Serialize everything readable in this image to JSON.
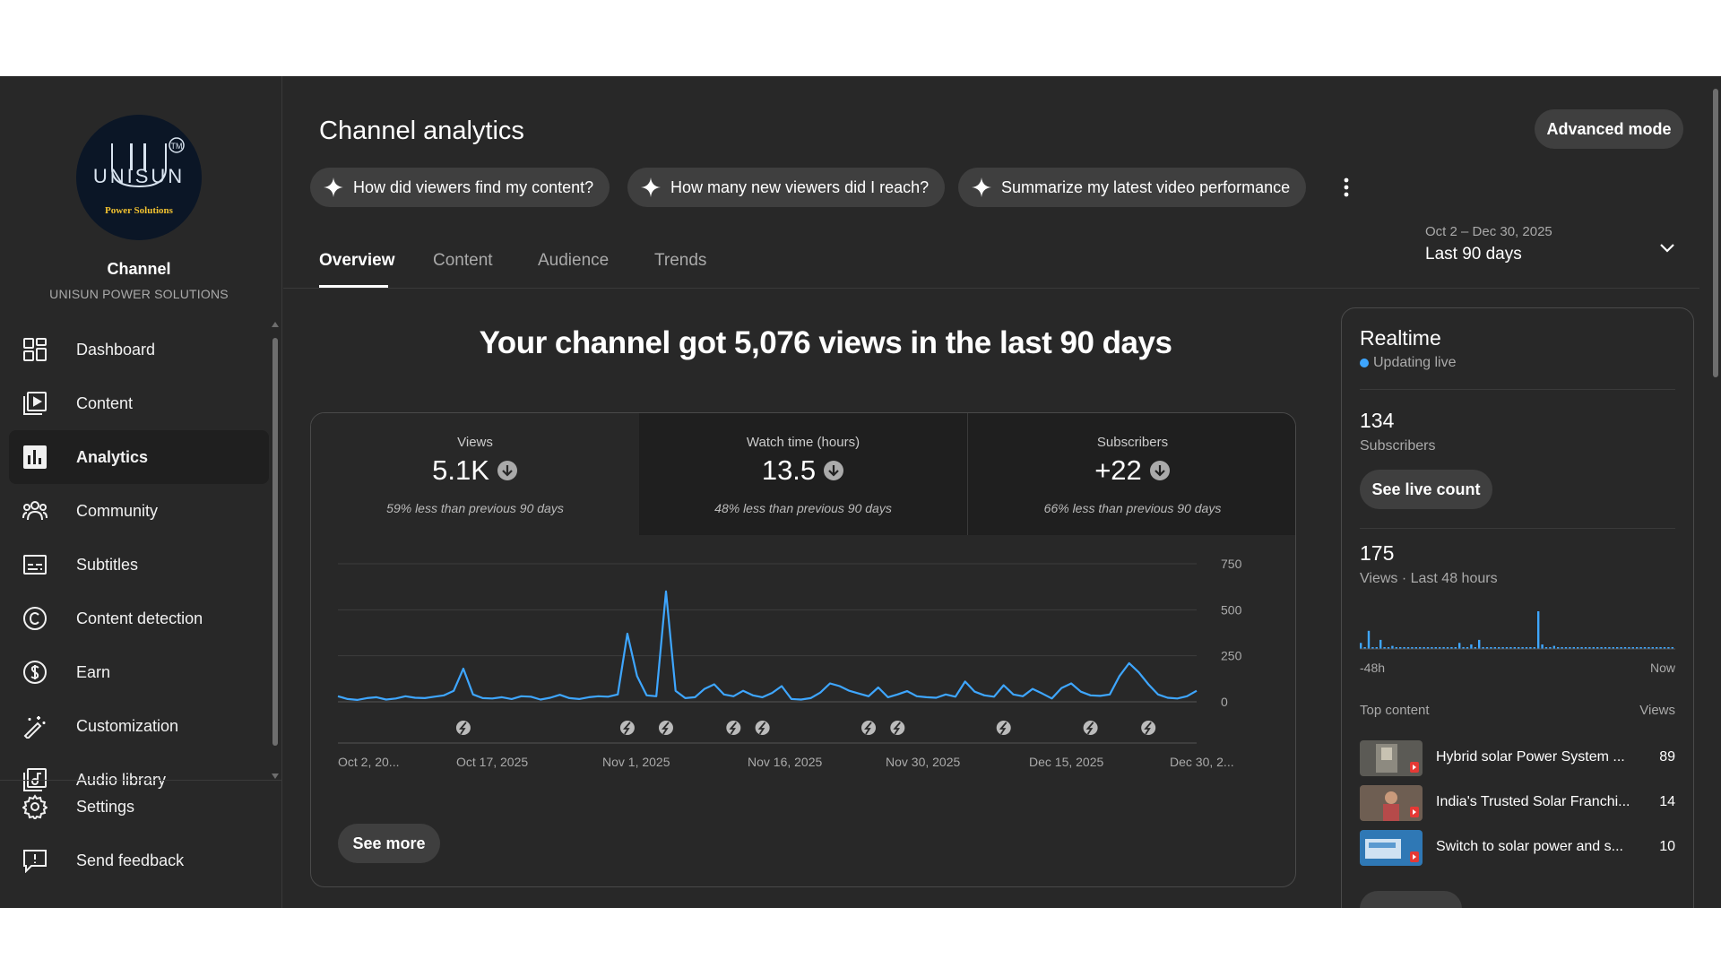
{
  "channel": {
    "title": "Channel",
    "name": "UNISUN POWER SOLUTIONS",
    "logo_word": "UNISUN",
    "logo_tagline": "Power Solutions",
    "logo_mark": "TM"
  },
  "sidebar": {
    "items": [
      {
        "label": "Dashboard",
        "icon": "dashboard-icon"
      },
      {
        "label": "Content",
        "icon": "content-icon"
      },
      {
        "label": "Analytics",
        "icon": "analytics-icon",
        "active": true
      },
      {
        "label": "Community",
        "icon": "community-icon"
      },
      {
        "label": "Subtitles",
        "icon": "subtitles-icon"
      },
      {
        "label": "Content detection",
        "icon": "copyright-icon"
      },
      {
        "label": "Earn",
        "icon": "dollar-icon"
      },
      {
        "label": "Customization",
        "icon": "magic-wand-icon"
      },
      {
        "label": "Audio library",
        "icon": "audio-library-icon"
      }
    ],
    "bottom": [
      {
        "label": "Settings",
        "icon": "gear-icon"
      },
      {
        "label": "Send feedback",
        "icon": "feedback-icon"
      }
    ]
  },
  "header": {
    "title": "Channel analytics",
    "advanced_mode": "Advanced mode",
    "chips": [
      "How did viewers find my content?",
      "How many new viewers did I reach?",
      "Summarize my latest video performance"
    ],
    "date_range": {
      "sub": "Oct 2 – Dec 30, 2025",
      "label": "Last 90 days"
    }
  },
  "tabs": [
    "Overview",
    "Content",
    "Audience",
    "Trends"
  ],
  "overview": {
    "headline": "Your channel got 5,076 views in the last 90 days",
    "metrics": [
      {
        "label": "Views",
        "value": "5.1K",
        "compare": "59% less than previous 90 days"
      },
      {
        "label": "Watch time (hours)",
        "value": "13.5",
        "compare": "48% less than previous 90 days"
      },
      {
        "label": "Subscribers",
        "value": "+22",
        "compare": "66% less than previous 90 days"
      }
    ],
    "see_more": "See more"
  },
  "chart_data": {
    "type": "line",
    "series": [
      {
        "values": [
          30,
          15,
          10,
          20,
          25,
          12,
          18,
          30,
          22,
          20,
          28,
          35,
          60,
          180,
          40,
          20,
          18,
          25,
          15,
          30,
          28,
          12,
          22,
          38,
          20,
          15,
          25,
          30,
          28,
          40,
          370,
          140,
          35,
          30,
          600,
          60,
          20,
          25,
          70,
          95,
          40,
          30,
          60,
          35,
          25,
          48,
          85,
          15,
          12,
          20,
          50,
          100,
          85,
          60,
          45,
          30,
          78,
          25,
          40,
          58,
          30,
          25,
          22,
          40,
          28,
          110,
          55,
          35,
          28,
          90,
          40,
          30,
          70,
          45,
          18,
          75,
          100,
          55,
          35,
          32,
          40,
          140,
          210,
          160,
          95,
          40,
          22,
          18,
          30,
          60
        ]
      }
    ],
    "x_tick_labels": [
      "Oct 2, 20...",
      "Oct 17, 2025",
      "Nov 1, 2025",
      "Nov 16, 2025",
      "Nov 30, 2025",
      "Dec 15, 2025",
      "Dec 30, 2..."
    ],
    "y_ticks": [
      0,
      250,
      500,
      750
    ],
    "ylim": [
      0,
      750
    ],
    "upload_markers_day_index": [
      13,
      30,
      34,
      41,
      44,
      55,
      58,
      69,
      78,
      84
    ],
    "color": "#3ea6ff",
    "grid": true
  },
  "realtime": {
    "title": "Realtime",
    "live": "Updating live",
    "subs_value": "134",
    "subs_label": "Subscribers",
    "live_btn": "See live count",
    "views_value": "175",
    "views_label": "Views · Last 48 hours",
    "axis_left": "-48h",
    "axis_right": "Now",
    "bars": [
      4,
      0,
      12,
      0,
      0,
      6,
      0,
      0,
      2,
      0,
      0,
      0,
      0,
      0,
      0,
      0,
      0,
      0,
      0,
      0,
      0,
      0,
      0,
      0,
      0,
      4,
      0,
      0,
      3,
      0,
      6,
      0,
      0,
      0,
      0,
      0,
      0,
      0,
      0,
      0,
      0,
      0,
      0,
      0,
      0,
      25,
      3,
      0,
      0,
      2,
      0,
      0,
      0,
      0,
      0,
      0,
      0,
      0,
      0,
      0,
      0,
      0,
      0,
      0,
      0,
      0,
      0,
      0,
      0,
      0,
      0,
      0,
      0,
      0,
      0,
      0,
      1,
      0,
      0,
      1
    ],
    "top_content_label": "Top content",
    "views_col": "Views",
    "top_content": [
      {
        "title": "Hybrid solar Power System ...",
        "views": "89"
      },
      {
        "title": "India's Trusted Solar Franchi...",
        "views": "14"
      },
      {
        "title": "Switch to solar power and s...",
        "views": "10"
      }
    ]
  }
}
